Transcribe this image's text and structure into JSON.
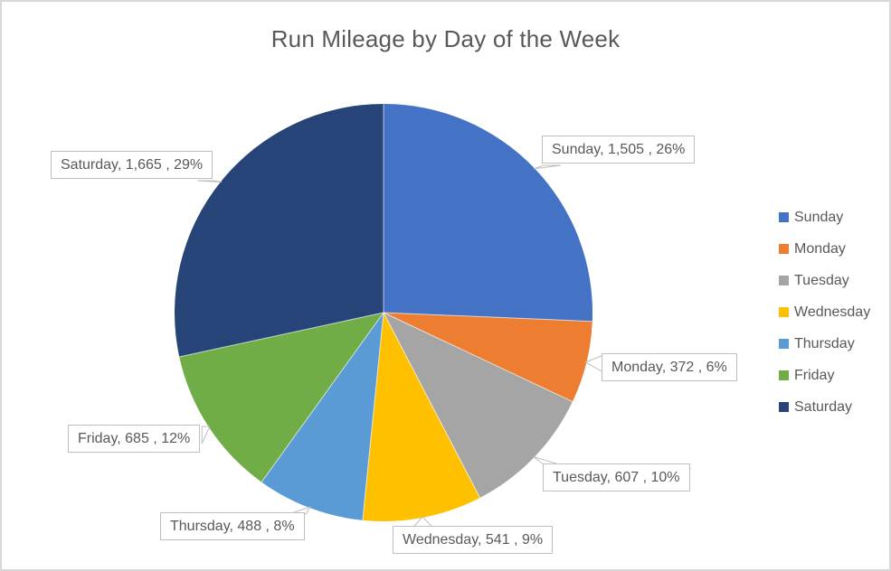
{
  "title": "Run Mileage by Day of the Week",
  "chart_data": {
    "type": "pie",
    "title": "Run Mileage by Day of the Week",
    "categories": [
      "Sunday",
      "Monday",
      "Tuesday",
      "Wednesday",
      "Thursday",
      "Friday",
      "Saturday"
    ],
    "values": [
      1505,
      372,
      607,
      541,
      488,
      685,
      1665
    ],
    "percent_labels": [
      "26%",
      "6%",
      "10%",
      "9%",
      "8%",
      "12%",
      "29%"
    ],
    "data_labels": [
      "Sunday, 1,505 , 26%",
      "Monday, 372 , 6%",
      "Tuesday, 607 , 10%",
      "Wednesday, 541 , 9%",
      "Thursday, 488 , 8%",
      "Friday, 685 , 12%",
      "Saturday, 1,665 , 29%"
    ],
    "colors": [
      "#4472C4",
      "#ED7D31",
      "#A5A5A5",
      "#FFC000",
      "#5B9BD5",
      "#70AD47",
      "#264478"
    ],
    "legend_position": "right",
    "start_angle_deg": 0,
    "direction": "clockwise"
  },
  "legend": {
    "items": [
      {
        "label": "Sunday",
        "color": "#4472C4"
      },
      {
        "label": "Monday",
        "color": "#ED7D31"
      },
      {
        "label": "Tuesday",
        "color": "#A5A5A5"
      },
      {
        "label": "Wednesday",
        "color": "#FFC000"
      },
      {
        "label": "Thursday",
        "color": "#5B9BD5"
      },
      {
        "label": "Friday",
        "color": "#70AD47"
      },
      {
        "label": "Saturday",
        "color": "#264478"
      }
    ]
  }
}
